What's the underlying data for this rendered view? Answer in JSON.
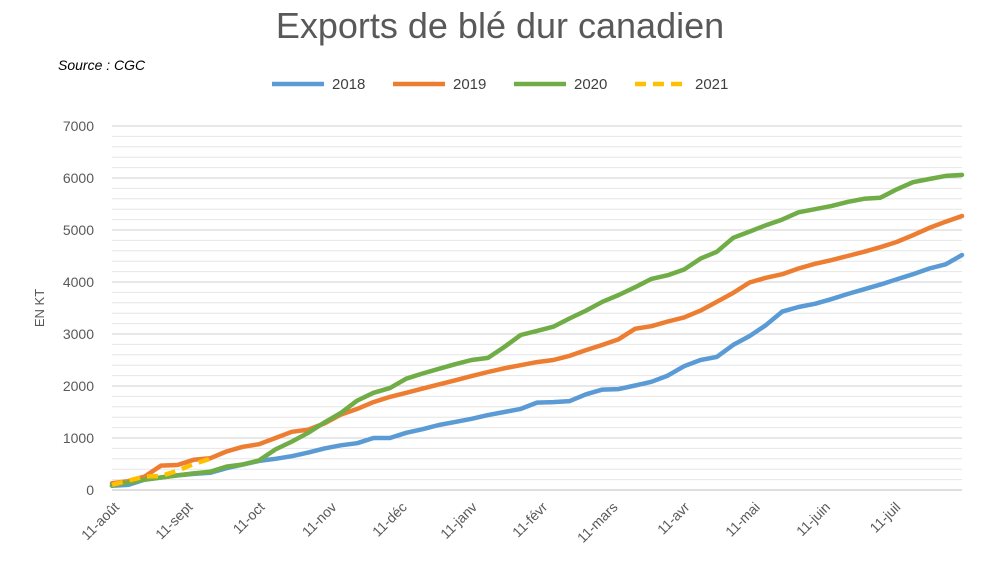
{
  "chart_data": {
    "type": "line",
    "title": "Exports de blé dur canadien",
    "source": "Source : CGC",
    "ylabel": "EN KT",
    "xlabel": "",
    "ylim": [
      0,
      7000
    ],
    "yticks": [
      0,
      1000,
      2000,
      3000,
      4000,
      5000,
      6000,
      7000
    ],
    "grid": true,
    "legend_position": "top",
    "weeks": 52,
    "x_tick_labels": [
      "11-août",
      "11-sept",
      "11-oct",
      "11-nov",
      "11-déc",
      "11-janv",
      "11-févr",
      "11-mars",
      "11-avr",
      "11-mai",
      "11-juin",
      "11-juil"
    ],
    "x_tick_weeks": [
      0,
      4.5,
      8.9,
      13.3,
      17.6,
      21.9,
      26.2,
      30.5,
      34.9,
      39.2,
      43.5,
      47.8
    ],
    "series": [
      {
        "name": "2018",
        "color": "#5B9BD5",
        "dashed": false,
        "values": [
          80,
          100,
          200,
          240,
          280,
          310,
          330,
          420,
          490,
          560,
          600,
          650,
          720,
          800,
          860,
          900,
          1000,
          1000,
          1100,
          1170,
          1250,
          1310,
          1370,
          1440,
          1500,
          1560,
          1680,
          1690,
          1710,
          1840,
          1930,
          1940,
          2010,
          2080,
          2200,
          2380,
          2500,
          2560,
          2790,
          2960,
          3170,
          3430,
          3520,
          3580,
          3670,
          3770,
          3860,
          3950,
          4050,
          4150,
          4260,
          4340,
          4520
        ]
      },
      {
        "name": "2019",
        "color": "#ED7D31",
        "dashed": false,
        "values": [
          130,
          170,
          260,
          470,
          480,
          580,
          610,
          740,
          830,
          880,
          1000,
          1120,
          1160,
          1280,
          1450,
          1560,
          1690,
          1790,
          1870,
          1950,
          2030,
          2110,
          2190,
          2270,
          2340,
          2400,
          2460,
          2500,
          2580,
          2690,
          2790,
          2900,
          3100,
          3150,
          3240,
          3320,
          3450,
          3620,
          3790,
          3990,
          4080,
          4150,
          4260,
          4350,
          4420,
          4500,
          4580,
          4670,
          4770,
          4900,
          5040,
          5160,
          5270
        ]
      },
      {
        "name": "2020",
        "color": "#70AD47",
        "dashed": false,
        "values": [
          90,
          140,
          200,
          240,
          280,
          320,
          350,
          450,
          490,
          570,
          780,
          930,
          1100,
          1300,
          1480,
          1720,
          1870,
          1960,
          2140,
          2240,
          2330,
          2420,
          2500,
          2540,
          2750,
          2980,
          3060,
          3140,
          3300,
          3450,
          3620,
          3750,
          3900,
          4060,
          4130,
          4240,
          4450,
          4580,
          4850,
          4970,
          5090,
          5200,
          5340,
          5400,
          5460,
          5540,
          5600,
          5620,
          5780,
          5920,
          5980,
          6040,
          6060
        ]
      },
      {
        "name": "2021",
        "color": "#FFC000",
        "dashed": true,
        "values": [
          100,
          180,
          260,
          270,
          370,
          500,
          600
        ]
      }
    ]
  }
}
